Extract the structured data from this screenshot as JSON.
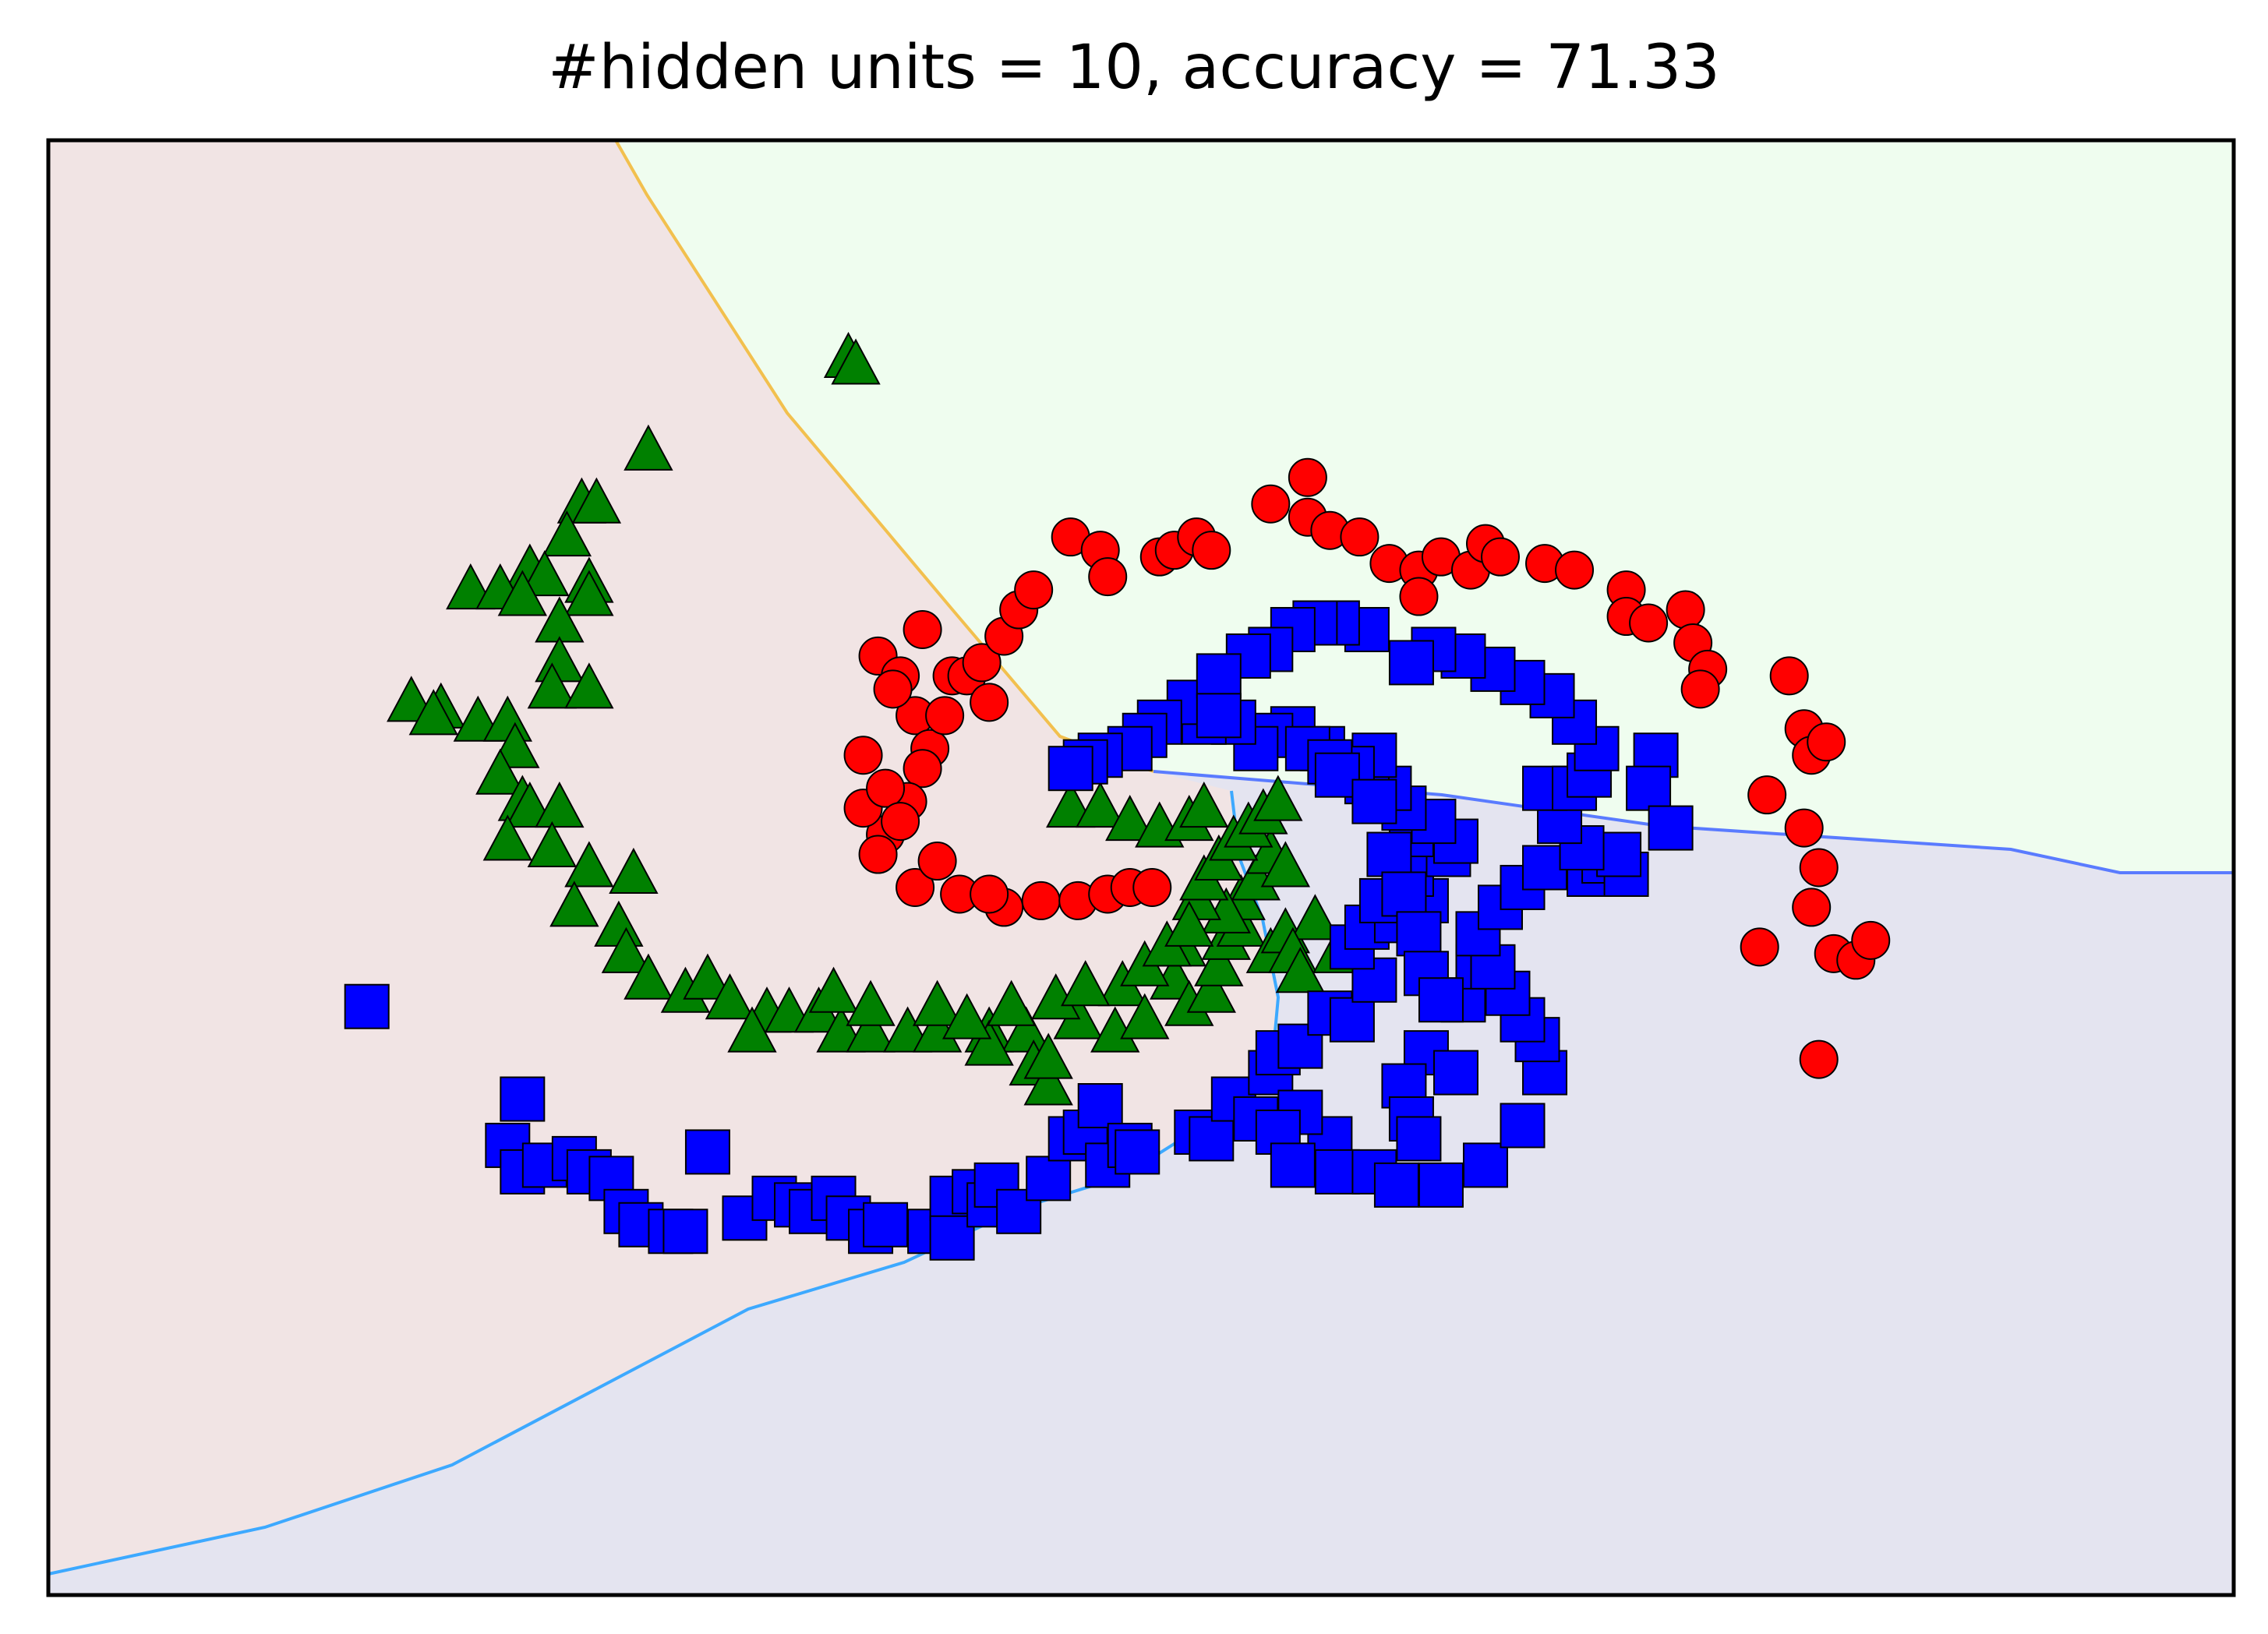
{
  "chart_data": {
    "type": "scatter",
    "title": "#hidden units = 10, accuracy = 71.33",
    "xlabel": "",
    "ylabel": "",
    "xlim": [
      -1.6,
      1.35
    ],
    "ylim": [
      -1.25,
      0.95
    ],
    "axis_ticks": "none",
    "grid": false,
    "background_regions": [
      {
        "class": "triangle-class",
        "color": "#f1e4e4"
      },
      {
        "class": "circle-class",
        "color": "#effdef"
      },
      {
        "class": "square-class",
        "color": "#e4e4f0"
      }
    ],
    "series": [
      {
        "marker": "circle",
        "color": "#ff0000",
        "points": [
          [
            -0.48,
            0.17
          ],
          [
            -0.45,
            0.14
          ],
          [
            -0.43,
            0.08
          ],
          [
            -0.41,
            0.03
          ],
          [
            -0.39,
            0.08
          ],
          [
            -0.38,
            0.14
          ],
          [
            -0.42,
            0.0
          ],
          [
            -0.44,
            -0.05
          ],
          [
            -0.47,
            -0.1
          ],
          [
            -0.5,
            -0.06
          ],
          [
            -0.5,
            0.02
          ],
          [
            -0.48,
            -0.13
          ],
          [
            -0.43,
            -0.18
          ],
          [
            -0.37,
            -0.19
          ],
          [
            -0.31,
            -0.21
          ],
          [
            -0.26,
            -0.2
          ],
          [
            -0.21,
            -0.2
          ],
          [
            -0.17,
            -0.19
          ],
          [
            -0.14,
            -0.18
          ],
          [
            -0.11,
            -0.18
          ],
          [
            -0.36,
            0.14
          ],
          [
            -0.33,
            0.1
          ],
          [
            -0.34,
            0.16
          ],
          [
            -0.31,
            0.2
          ],
          [
            -0.29,
            0.24
          ],
          [
            -0.27,
            0.27
          ],
          [
            -0.22,
            0.35
          ],
          [
            -0.18,
            0.33
          ],
          [
            -0.17,
            0.29
          ],
          [
            -0.1,
            0.32
          ],
          [
            -0.08,
            0.33
          ],
          [
            -0.05,
            0.35
          ],
          [
            -0.03,
            0.33
          ],
          [
            0.05,
            0.4
          ],
          [
            0.1,
            0.44
          ],
          [
            0.1,
            0.38
          ],
          [
            0.13,
            0.36
          ],
          [
            0.17,
            0.35
          ],
          [
            0.21,
            0.31
          ],
          [
            0.25,
            0.3
          ],
          [
            0.25,
            0.26
          ],
          [
            0.28,
            0.32
          ],
          [
            0.32,
            0.3
          ],
          [
            0.34,
            0.34
          ],
          [
            0.36,
            0.32
          ],
          [
            0.42,
            0.31
          ],
          [
            0.46,
            0.3
          ],
          [
            0.53,
            0.27
          ],
          [
            0.53,
            0.23
          ],
          [
            0.56,
            0.22
          ],
          [
            0.61,
            0.24
          ],
          [
            0.62,
            0.19
          ],
          [
            0.64,
            0.15
          ],
          [
            0.63,
            0.12
          ],
          [
            0.75,
            0.14
          ],
          [
            0.77,
            0.06
          ],
          [
            0.78,
            0.02
          ],
          [
            0.8,
            0.04
          ],
          [
            0.72,
            -0.04
          ],
          [
            0.77,
            -0.09
          ],
          [
            0.79,
            -0.15
          ],
          [
            0.78,
            -0.21
          ],
          [
            0.81,
            -0.28
          ],
          [
            0.84,
            -0.29
          ],
          [
            0.86,
            -0.26
          ],
          [
            0.79,
            -0.44
          ],
          [
            0.71,
            -0.27
          ],
          [
            -0.42,
            0.21
          ],
          [
            -0.46,
            0.12
          ],
          [
            -0.47,
            -0.03
          ],
          [
            -0.45,
            -0.08
          ],
          [
            -0.4,
            -0.14
          ],
          [
            -0.33,
            -0.19
          ]
        ]
      },
      {
        "marker": "triangle",
        "color": "#008000",
        "points": [
          [
            -0.52,
            0.62
          ],
          [
            -0.51,
            0.61
          ],
          [
            -0.79,
            0.48
          ],
          [
            -0.88,
            0.4
          ],
          [
            -0.86,
            0.4
          ],
          [
            -0.9,
            0.35
          ],
          [
            -0.95,
            0.3
          ],
          [
            -0.93,
            0.29
          ],
          [
            -0.87,
            0.28
          ],
          [
            -0.87,
            0.26
          ],
          [
            -1.03,
            0.27
          ],
          [
            -0.99,
            0.27
          ],
          [
            -0.96,
            0.26
          ],
          [
            -0.91,
            0.22
          ],
          [
            -0.91,
            0.16
          ],
          [
            -0.92,
            0.12
          ],
          [
            -0.87,
            0.12
          ],
          [
            -1.11,
            0.1
          ],
          [
            -1.07,
            0.09
          ],
          [
            -1.08,
            0.08
          ],
          [
            -1.02,
            0.07
          ],
          [
            -0.98,
            0.07
          ],
          [
            -0.97,
            0.03
          ],
          [
            -0.99,
            -0.01
          ],
          [
            -0.96,
            -0.05
          ],
          [
            -0.95,
            -0.06
          ],
          [
            -0.91,
            -0.06
          ],
          [
            -0.98,
            -0.11
          ],
          [
            -0.92,
            -0.12
          ],
          [
            -0.87,
            -0.15
          ],
          [
            -0.81,
            -0.16
          ],
          [
            -0.89,
            -0.21
          ],
          [
            -0.83,
            -0.24
          ],
          [
            -0.82,
            -0.28
          ],
          [
            -0.79,
            -0.32
          ],
          [
            -0.74,
            -0.34
          ],
          [
            -0.71,
            -0.32
          ],
          [
            -0.68,
            -0.35
          ],
          [
            -0.63,
            -0.37
          ],
          [
            -0.6,
            -0.37
          ],
          [
            -0.56,
            -0.37
          ],
          [
            -0.53,
            -0.4
          ],
          [
            -0.49,
            -0.4
          ],
          [
            -0.44,
            -0.4
          ],
          [
            -0.4,
            -0.4
          ],
          [
            -0.33,
            -0.4
          ],
          [
            -0.28,
            -0.4
          ],
          [
            -0.27,
            -0.45
          ],
          [
            -0.33,
            -0.42
          ],
          [
            -0.25,
            -0.48
          ],
          [
            -0.25,
            -0.44
          ],
          [
            -0.21,
            -0.38
          ],
          [
            -0.16,
            -0.4
          ],
          [
            -0.15,
            -0.33
          ],
          [
            -0.12,
            -0.38
          ],
          [
            -0.08,
            -0.32
          ],
          [
            -0.06,
            -0.36
          ],
          [
            -0.03,
            -0.34
          ],
          [
            -0.02,
            -0.3
          ],
          [
            -0.01,
            -0.26
          ],
          [
            0.01,
            -0.24
          ],
          [
            0.05,
            -0.28
          ],
          [
            0.07,
            -0.25
          ],
          [
            0.01,
            -0.2
          ],
          [
            0.03,
            -0.17
          ],
          [
            0.05,
            -0.13
          ],
          [
            0.07,
            -0.15
          ],
          [
            0.11,
            -0.23
          ],
          [
            0.08,
            -0.28
          ],
          [
            0.14,
            -0.28
          ],
          [
            0.09,
            -0.31
          ],
          [
            -0.01,
            -0.22
          ],
          [
            -0.05,
            -0.2
          ],
          [
            -0.07,
            -0.27
          ],
          [
            -0.65,
            -0.4
          ],
          [
            -0.54,
            -0.34
          ],
          [
            -0.49,
            -0.36
          ],
          [
            -0.4,
            -0.36
          ],
          [
            -0.36,
            -0.38
          ],
          [
            -0.3,
            -0.36
          ],
          [
            -0.24,
            -0.35
          ],
          [
            -0.2,
            -0.33
          ],
          [
            -0.12,
            -0.3
          ],
          [
            -0.09,
            -0.27
          ],
          [
            -0.06,
            -0.24
          ],
          [
            -0.04,
            -0.17
          ],
          [
            -0.02,
            -0.14
          ],
          [
            0.0,
            -0.11
          ],
          [
            0.02,
            -0.09
          ],
          [
            0.04,
            -0.07
          ],
          [
            0.06,
            -0.05
          ],
          [
            -0.22,
            -0.06
          ],
          [
            -0.18,
            -0.06
          ],
          [
            -0.14,
            -0.08
          ],
          [
            -0.1,
            -0.09
          ],
          [
            -0.06,
            -0.08
          ],
          [
            -0.04,
            -0.06
          ]
        ]
      },
      {
        "marker": "square",
        "color": "#0000ff",
        "points": [
          [
            -1.17,
            -0.36
          ],
          [
            -0.96,
            -0.5
          ],
          [
            -0.98,
            -0.57
          ],
          [
            -0.96,
            -0.61
          ],
          [
            -0.93,
            -0.6
          ],
          [
            -0.89,
            -0.59
          ],
          [
            -0.87,
            -0.61
          ],
          [
            -0.84,
            -0.62
          ],
          [
            -0.82,
            -0.67
          ],
          [
            -0.8,
            -0.69
          ],
          [
            -0.76,
            -0.7
          ],
          [
            -0.74,
            -0.7
          ],
          [
            -0.71,
            -0.58
          ],
          [
            -0.66,
            -0.68
          ],
          [
            -0.62,
            -0.65
          ],
          [
            -0.59,
            -0.66
          ],
          [
            -0.57,
            -0.67
          ],
          [
            -0.54,
            -0.65
          ],
          [
            -0.52,
            -0.68
          ],
          [
            -0.49,
            -0.7
          ],
          [
            -0.47,
            -0.69
          ],
          [
            -0.41,
            -0.7
          ],
          [
            -0.38,
            -0.65
          ],
          [
            -0.38,
            -0.71
          ],
          [
            -0.35,
            -0.64
          ],
          [
            -0.33,
            -0.66
          ],
          [
            -0.32,
            -0.63
          ],
          [
            -0.29,
            -0.67
          ],
          [
            -0.25,
            -0.62
          ],
          [
            -0.22,
            -0.56
          ],
          [
            -0.2,
            -0.55
          ],
          [
            -0.18,
            -0.51
          ],
          [
            -0.17,
            -0.6
          ],
          [
            -0.14,
            -0.57
          ],
          [
            -0.13,
            -0.58
          ],
          [
            -0.05,
            -0.55
          ],
          [
            -0.03,
            -0.56
          ],
          [
            0.0,
            -0.5
          ],
          [
            0.03,
            -0.53
          ],
          [
            0.05,
            -0.46
          ],
          [
            0.06,
            -0.43
          ],
          [
            0.09,
            -0.42
          ],
          [
            0.13,
            -0.37
          ],
          [
            0.16,
            -0.38
          ],
          [
            0.19,
            -0.32
          ],
          [
            0.16,
            -0.27
          ],
          [
            0.18,
            -0.24
          ],
          [
            0.22,
            -0.23
          ],
          [
            0.2,
            -0.2
          ],
          [
            0.26,
            -0.2
          ],
          [
            0.24,
            -0.16
          ],
          [
            0.29,
            -0.13
          ],
          [
            0.3,
            -0.11
          ],
          [
            0.24,
            -0.1
          ],
          [
            0.27,
            -0.08
          ],
          [
            0.23,
            -0.06
          ],
          [
            0.21,
            -0.03
          ],
          [
            0.18,
            -0.02
          ],
          [
            0.19,
            0.02
          ],
          [
            0.16,
            0.0
          ],
          [
            0.12,
            0.03
          ],
          [
            0.08,
            0.06
          ],
          [
            0.05,
            0.05
          ],
          [
            0.03,
            0.03
          ],
          [
            0.0,
            0.07
          ],
          [
            -0.04,
            0.07
          ],
          [
            -0.06,
            0.1
          ],
          [
            -0.1,
            0.07
          ],
          [
            -0.12,
            0.05
          ],
          [
            -0.14,
            0.03
          ],
          [
            -0.18,
            0.02
          ],
          [
            -0.2,
            0.01
          ],
          [
            -0.22,
            0.0
          ],
          [
            0.1,
            0.03
          ],
          [
            0.13,
            0.01
          ],
          [
            0.14,
            -0.01
          ],
          [
            0.19,
            -0.05
          ],
          [
            0.21,
            -0.13
          ],
          [
            0.23,
            -0.19
          ],
          [
            0.25,
            -0.25
          ],
          [
            0.26,
            -0.31
          ],
          [
            0.31,
            -0.35
          ],
          [
            0.33,
            -0.3
          ],
          [
            0.28,
            -0.35
          ],
          [
            0.26,
            -0.43
          ],
          [
            0.23,
            -0.48
          ],
          [
            0.3,
            -0.46
          ],
          [
            0.24,
            -0.53
          ],
          [
            0.25,
            -0.56
          ],
          [
            0.13,
            -0.56
          ],
          [
            0.09,
            -0.52
          ],
          [
            0.06,
            -0.55
          ],
          [
            0.08,
            -0.6
          ],
          [
            0.14,
            -0.61
          ],
          [
            0.19,
            -0.61
          ],
          [
            0.22,
            -0.63
          ],
          [
            0.28,
            -0.63
          ],
          [
            0.34,
            -0.6
          ],
          [
            0.39,
            -0.54
          ],
          [
            0.42,
            -0.46
          ],
          [
            0.41,
            -0.41
          ],
          [
            0.39,
            -0.38
          ],
          [
            0.37,
            -0.34
          ],
          [
            0.35,
            -0.3
          ],
          [
            0.33,
            -0.25
          ],
          [
            0.36,
            -0.21
          ],
          [
            0.39,
            -0.18
          ],
          [
            0.42,
            -0.15
          ],
          [
            0.48,
            -0.16
          ],
          [
            0.5,
            -0.14
          ],
          [
            0.53,
            -0.16
          ],
          [
            0.52,
            -0.13
          ],
          [
            0.47,
            -0.12
          ],
          [
            0.44,
            -0.08
          ],
          [
            0.42,
            -0.03
          ],
          [
            0.46,
            -0.03
          ],
          [
            0.48,
            -0.01
          ],
          [
            0.49,
            0.03
          ],
          [
            0.46,
            0.07
          ],
          [
            0.43,
            0.11
          ],
          [
            0.39,
            0.13
          ],
          [
            0.35,
            0.15
          ],
          [
            0.31,
            0.17
          ],
          [
            0.27,
            0.18
          ],
          [
            0.24,
            0.16
          ],
          [
            0.18,
            0.21
          ],
          [
            0.14,
            0.22
          ],
          [
            0.11,
            0.22
          ],
          [
            0.08,
            0.21
          ],
          [
            0.05,
            0.18
          ],
          [
            0.02,
            0.17
          ],
          [
            -0.02,
            0.14
          ],
          [
            -0.02,
            0.08
          ],
          [
            0.57,
            0.02
          ],
          [
            0.56,
            -0.03
          ],
          [
            0.59,
            -0.09
          ]
        ]
      }
    ]
  }
}
